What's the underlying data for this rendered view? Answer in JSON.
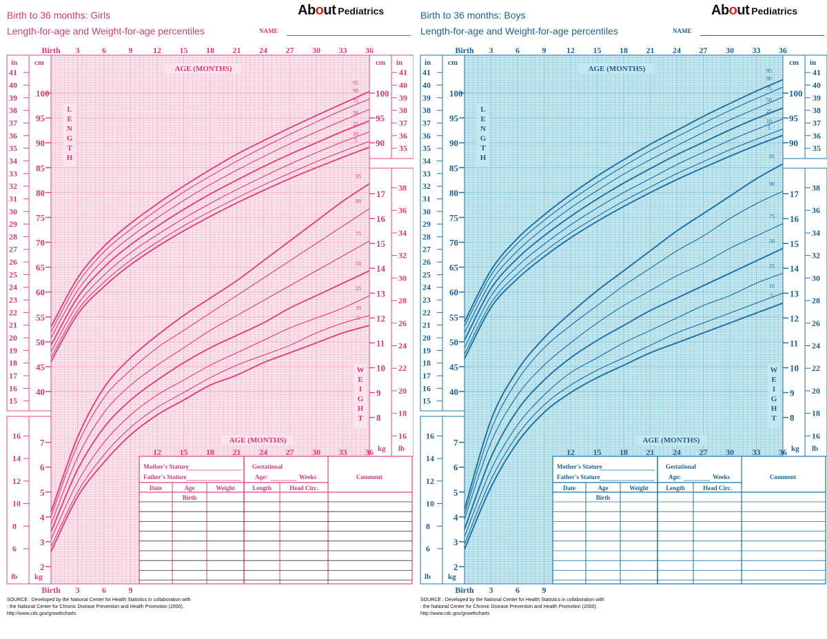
{
  "logo": {
    "brand_prefix": "Ab",
    "brand_o": "o",
    "brand_suffix": "ut",
    "sub": "Pediatrics"
  },
  "charts": [
    {
      "id": "girls",
      "title": "Birth to 36 months: Girls",
      "subtitle": "Length-for-age and Weight-for-age percentiles",
      "name_label": "NAME",
      "colors": {
        "line": "#e0457f",
        "text": "#d63a78",
        "bg": "#fce4ec",
        "grid": "#eeb5c9",
        "table_line": "#333333"
      },
      "axis_labels": {
        "in": "in",
        "cm": "cm",
        "lb": "lb",
        "kg": "kg",
        "age_months": "AGE (MONTHS)",
        "age_months_lower": "AGE (MONTHS)",
        "length": "LENGTH",
        "weight": "WEIGHT"
      },
      "age_ticks": [
        "Birth",
        "3",
        "6",
        "9",
        "12",
        "15",
        "18",
        "21",
        "24",
        "27",
        "30",
        "33",
        "36"
      ],
      "lower_age_ticks": [
        "12",
        "15",
        "18",
        "21",
        "24",
        "27",
        "30",
        "33",
        "36"
      ],
      "bottom_age_ticks": [
        "Birth",
        "3",
        "6",
        "9"
      ],
      "table": {
        "mothers_stature": "Mother's Stature",
        "fathers_stature": "Father's Stature",
        "gestational": "Gestational",
        "age_weeks_a": "Age:",
        "age_weeks_b": "Weeks",
        "comment": "Comment",
        "headers": [
          "Date",
          "Age",
          "Weight",
          "Length",
          "Head Circ."
        ],
        "birth": "Birth"
      },
      "source": [
        "SOURCE : Developed by the National Center for Health Statistics in collaboration with",
        ": the National Center for Chronic Disease Prevention and Health Promotion (2000).",
        "http://www.cdc.gov/growthcharts"
      ]
    },
    {
      "id": "boys",
      "title": "Birth to 36 months: Boys",
      "subtitle": "Length-for-age and Weight-for-age percentiles",
      "name_label": "NAME",
      "colors": {
        "line": "#1f72a8",
        "text": "#1d5f93",
        "bg": "#c5e8f0",
        "grid": "#8cc8d8",
        "table_line": "#1f72a8"
      },
      "axis_labels": {
        "in": "in",
        "cm": "cm",
        "lb": "lb",
        "kg": "kg",
        "age_months": "AGE (MONTHS)",
        "age_months_lower": "AGE (MONTHS)",
        "length": "LENGTH",
        "weight": "WEIGHT"
      },
      "age_ticks": [
        "Birth",
        "3",
        "6",
        "9",
        "12",
        "15",
        "18",
        "21",
        "24",
        "27",
        "30",
        "33",
        "36"
      ],
      "lower_age_ticks": [
        "12",
        "15",
        "18",
        "21",
        "24",
        "27",
        "30",
        "33",
        "36"
      ],
      "bottom_age_ticks": [
        "Birth",
        "3",
        "6",
        "9"
      ],
      "table": {
        "mothers_stature": "Mother's Stature",
        "fathers_stature": "Father's Stature",
        "gestational": "Gestational",
        "age_weeks_a": "Age:",
        "age_weeks_b": "Weeks",
        "comment": "Comment",
        "headers": [
          "Date",
          "Age",
          "Weight",
          "Length",
          "Head Circ."
        ],
        "birth": "Birth"
      },
      "source": [
        "SOURCE : Developed by the National Center for Health Statistics in collaboration with",
        ": the National Center for Chronic Disease Prevention and Health Promotion (2000).",
        "http://www.cdc.gov/growthcharts"
      ]
    }
  ],
  "chart_data": [
    {
      "type": "line",
      "title": "Birth to 36 months: Girls",
      "subtitle": "Length-for-age and Weight-for-age percentiles",
      "xlabel": "AGE (MONTHS)",
      "x": [
        0,
        3,
        6,
        9,
        12,
        15,
        18,
        21,
        24,
        27,
        30,
        33,
        36
      ],
      "xlim": [
        0,
        36
      ],
      "length_cm": {
        "ylim": [
          39,
          105
        ],
        "left_ticks_cm": [
          40,
          45,
          50,
          55,
          60,
          65,
          70,
          75,
          80,
          85,
          90,
          95,
          100
        ],
        "left_ticks_in": [
          15,
          16,
          17,
          18,
          19,
          20,
          21,
          22,
          23,
          24,
          25,
          26,
          27,
          28,
          29,
          30,
          31,
          32,
          33,
          34,
          35,
          36,
          37,
          38,
          39,
          40,
          41
        ],
        "right_ticks_cm": [
          90,
          95,
          100
        ],
        "right_ticks_in": [
          35,
          36,
          37,
          38,
          39,
          40,
          41
        ],
        "series": [
          {
            "name": "95",
            "values": [
              53.0,
              62.8,
              69.2,
              73.8,
              77.7,
              81.3,
              84.6,
              87.7,
              90.4,
              93.0,
              95.5,
              97.9,
              100.3
            ]
          },
          {
            "name": "90",
            "values": [
              52.0,
              61.7,
              68.1,
              72.6,
              76.5,
              80.1,
              83.3,
              86.3,
              89.1,
              91.7,
              94.2,
              96.6,
              98.8
            ]
          },
          {
            "name": "75",
            "values": [
              50.8,
              60.3,
              66.6,
              71.1,
              74.9,
              78.4,
              81.6,
              84.5,
              87.2,
              89.8,
              92.2,
              94.5,
              96.7
            ]
          },
          {
            "name": "50",
            "values": [
              49.3,
              58.9,
              65.0,
              69.5,
              73.2,
              76.6,
              79.7,
              82.5,
              85.2,
              87.7,
              90.0,
              92.3,
              94.4
            ]
          },
          {
            "name": "25",
            "values": [
              48.0,
              57.5,
              63.4,
              67.9,
              71.5,
              74.8,
              77.8,
              80.6,
              83.2,
              85.7,
              88.0,
              90.2,
              92.2
            ]
          },
          {
            "name": "10",
            "values": [
              46.8,
              56.3,
              62.0,
              66.4,
              70.0,
              73.3,
              76.2,
              78.9,
              81.5,
              83.9,
              86.2,
              88.3,
              90.3
            ]
          },
          {
            "name": "5",
            "values": [
              46.0,
              55.5,
              61.1,
              65.5,
              69.1,
              72.3,
              75.2,
              77.9,
              80.4,
              82.8,
              85.0,
              87.1,
              89.1
            ]
          }
        ]
      },
      "weight_kg": {
        "ylim": [
          1.5,
          18
        ],
        "left_ticks_kg": [
          2,
          3,
          4,
          5,
          6,
          7
        ],
        "left_ticks_lb": [
          6,
          8,
          10,
          12,
          14,
          16
        ],
        "right_ticks_kg": [
          8,
          9,
          10,
          11,
          12,
          13,
          14,
          15,
          16,
          17
        ],
        "right_ticks_lb": [
          16,
          18,
          20,
          22,
          24,
          26,
          28,
          30,
          32,
          34,
          36,
          38
        ],
        "series": [
          {
            "name": "95",
            "values": [
              4.2,
              7.2,
              9.2,
              10.4,
              11.3,
              12.1,
              12.8,
              13.5,
              14.3,
              15.1,
              15.9,
              16.7,
              17.4
            ]
          },
          {
            "name": "90",
            "values": [
              4.0,
              6.9,
              8.8,
              9.9,
              10.8,
              11.5,
              12.2,
              12.9,
              13.6,
              14.3,
              15.0,
              15.7,
              16.4
            ]
          },
          {
            "name": "75",
            "values": [
              3.7,
              6.4,
              8.2,
              9.3,
              10.1,
              10.8,
              11.5,
              12.1,
              12.7,
              13.3,
              13.9,
              14.5,
              15.1
            ]
          },
          {
            "name": "50",
            "values": [
              3.4,
              5.9,
              7.6,
              8.7,
              9.5,
              10.2,
              10.8,
              11.3,
              11.8,
              12.4,
              12.9,
              13.4,
              13.9
            ]
          },
          {
            "name": "25",
            "values": [
              3.1,
              5.4,
              7.0,
              8.1,
              8.9,
              9.5,
              10.1,
              10.6,
              11.1,
              11.6,
              12.0,
              12.4,
              12.9
            ]
          },
          {
            "name": "10",
            "values": [
              2.8,
              5.0,
              6.5,
              7.6,
              8.4,
              9.0,
              9.6,
              10.1,
              10.5,
              10.9,
              11.4,
              11.8,
              12.1
            ]
          },
          {
            "name": "5",
            "values": [
              2.6,
              4.8,
              6.2,
              7.3,
              8.1,
              8.7,
              9.3,
              9.7,
              10.2,
              10.6,
              11.0,
              11.4,
              11.7
            ]
          }
        ]
      }
    },
    {
      "type": "line",
      "title": "Birth to 36 months: Boys",
      "subtitle": "Length-for-age and Weight-for-age percentiles",
      "xlabel": "AGE (MONTHS)",
      "x": [
        0,
        3,
        6,
        9,
        12,
        15,
        18,
        21,
        24,
        27,
        30,
        33,
        36
      ],
      "xlim": [
        0,
        36
      ],
      "length_cm": {
        "ylim": [
          39,
          105
        ],
        "left_ticks_cm": [
          40,
          45,
          50,
          55,
          60,
          65,
          70,
          75,
          80,
          85,
          90,
          95,
          100
        ],
        "left_ticks_in": [
          15,
          16,
          17,
          18,
          19,
          20,
          21,
          22,
          23,
          24,
          25,
          26,
          27,
          28,
          29,
          30,
          31,
          32,
          33,
          34,
          35,
          36,
          37,
          38,
          39,
          40,
          41
        ],
        "right_ticks_cm": [
          90,
          95,
          100
        ],
        "right_ticks_in": [
          35,
          36,
          37,
          38,
          39,
          40,
          41
        ],
        "series": [
          {
            "name": "95",
            "values": [
              54.0,
              64.4,
              70.8,
              75.5,
              79.6,
              83.3,
              86.6,
              89.7,
              92.5,
              95.3,
              97.9,
              100.4,
              102.7
            ]
          },
          {
            "name": "90",
            "values": [
              53.1,
              63.4,
              69.8,
              74.4,
              78.4,
              82.0,
              85.3,
              88.4,
              91.2,
              93.9,
              96.5,
              98.9,
              101.2
            ]
          },
          {
            "name": "75",
            "values": [
              51.8,
              62.1,
              68.3,
              72.9,
              76.9,
              80.4,
              83.7,
              86.6,
              89.4,
              92.1,
              94.6,
              96.9,
              99.2
            ]
          },
          {
            "name": "50",
            "values": [
              50.3,
              60.7,
              66.8,
              71.3,
              75.2,
              78.7,
              81.9,
              84.8,
              87.6,
              90.1,
              92.6,
              94.9,
              97.0
            ]
          },
          {
            "name": "25",
            "values": [
              48.8,
              59.2,
              65.2,
              69.6,
              73.5,
              76.9,
              80.0,
              82.8,
              85.6,
              88.1,
              90.5,
              92.7,
              94.8
            ]
          },
          {
            "name": "10",
            "values": [
              47.5,
              57.8,
              63.7,
              68.1,
              71.9,
              75.2,
              78.3,
              81.1,
              83.8,
              86.2,
              88.6,
              90.7,
              92.8
            ]
          },
          {
            "name": "5",
            "values": [
              46.6,
              56.9,
              62.7,
              67.1,
              70.9,
              74.2,
              77.2,
              80.0,
              82.6,
              85.0,
              87.3,
              89.5,
              91.5
            ]
          }
        ]
      },
      "weight_kg": {
        "ylim": [
          1.5,
          18
        ],
        "left_ticks_kg": [
          2,
          3,
          4,
          5,
          6,
          7
        ],
        "left_ticks_lb": [
          6,
          8,
          10,
          12,
          14,
          16
        ],
        "right_ticks_kg": [
          8,
          9,
          10,
          11,
          12,
          13,
          14,
          15,
          16,
          17
        ],
        "right_ticks_lb": [
          16,
          18,
          20,
          22,
          24,
          26,
          28,
          30,
          32,
          34,
          36,
          38
        ],
        "series": [
          {
            "name": "95",
            "values": [
              4.3,
              7.9,
              9.9,
              11.2,
              12.2,
              13.1,
              13.9,
              14.7,
              15.5,
              16.2,
              16.9,
              17.6,
              18.2
            ]
          },
          {
            "name": "90",
            "values": [
              4.1,
              7.5,
              9.5,
              10.8,
              11.7,
              12.5,
              13.3,
              14.0,
              14.7,
              15.3,
              16.0,
              16.6,
              17.1
            ]
          },
          {
            "name": "75",
            "values": [
              3.9,
              7.0,
              8.9,
              10.1,
              11.0,
              11.8,
              12.5,
              13.1,
              13.7,
              14.2,
              14.8,
              15.3,
              15.8
            ]
          },
          {
            "name": "50",
            "values": [
              3.5,
              6.4,
              8.3,
              9.5,
              10.4,
              11.1,
              11.7,
              12.3,
              12.8,
              13.3,
              13.8,
              14.3,
              14.8
            ]
          },
          {
            "name": "25",
            "values": [
              3.2,
              5.9,
              7.7,
              8.9,
              9.8,
              10.4,
              11.0,
              11.5,
              12.0,
              12.5,
              12.9,
              13.4,
              13.8
            ]
          },
          {
            "name": "10",
            "values": [
              2.9,
              5.5,
              7.3,
              8.5,
              9.3,
              9.9,
              10.4,
              10.9,
              11.4,
              11.8,
              12.2,
              12.6,
              13.0
            ]
          },
          {
            "name": "5",
            "values": [
              2.7,
              5.2,
              7.0,
              8.2,
              9.0,
              9.6,
              10.1,
              10.6,
              11.0,
              11.4,
              11.8,
              12.2,
              12.6
            ]
          }
        ]
      }
    }
  ]
}
